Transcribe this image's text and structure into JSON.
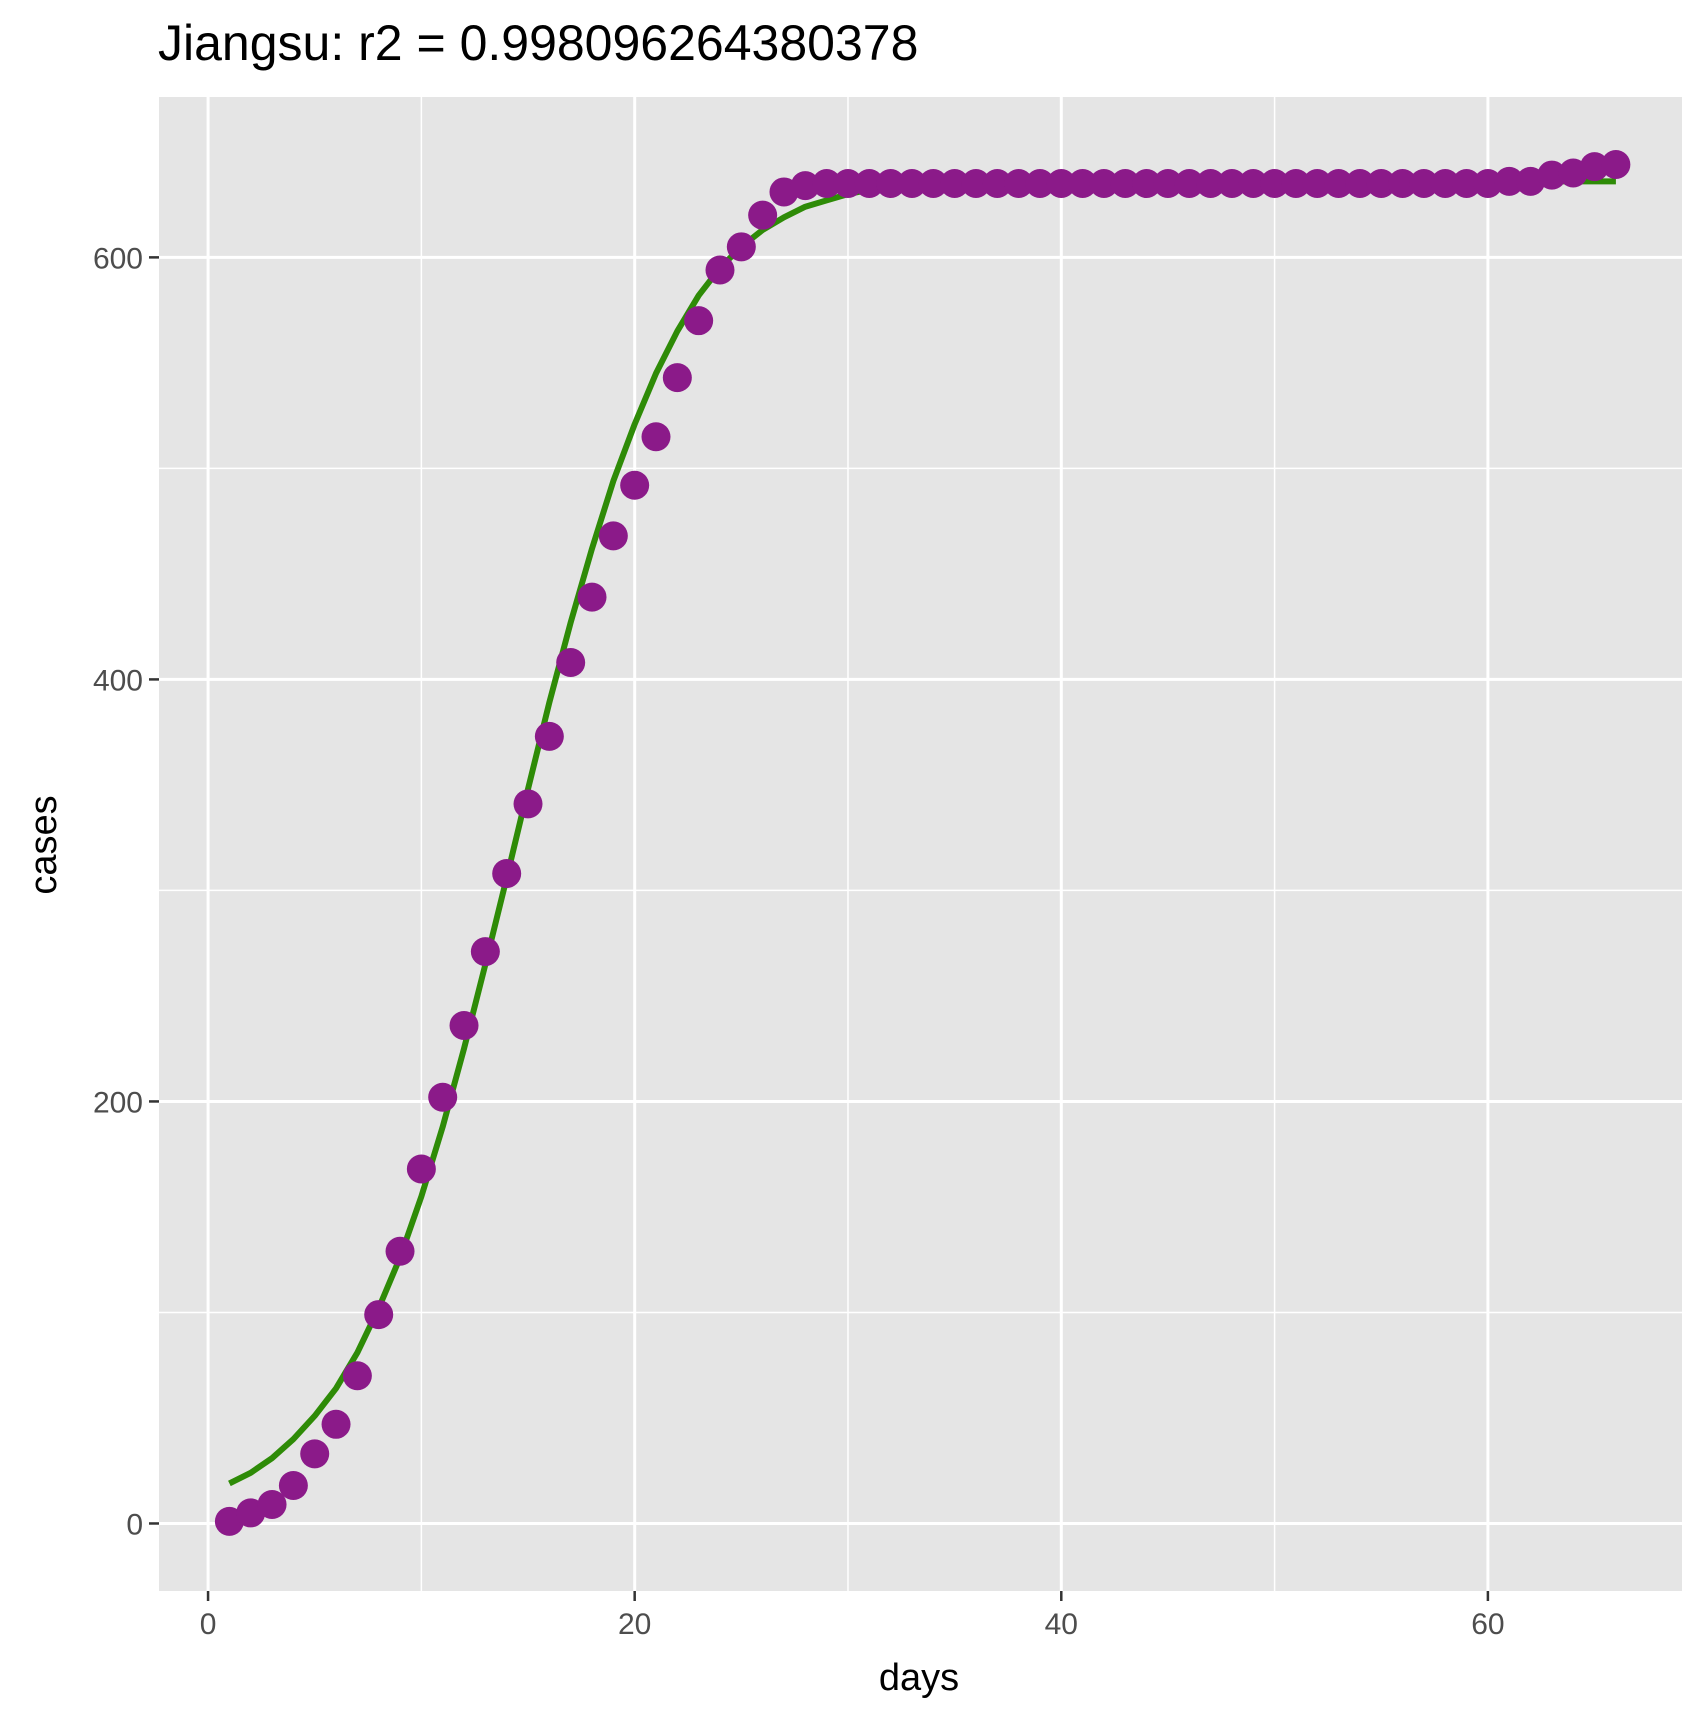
{
  "chart_data": {
    "type": "scatter",
    "title": "Jiangsu: r2 = 0.998096264380378",
    "xlabel": "days",
    "ylabel": "cases",
    "xlim": [
      -2.3,
      69.1
    ],
    "ylim": [
      -32,
      676
    ],
    "x_ticks": [
      0,
      20,
      40,
      60
    ],
    "x_tick_labels": [
      "0",
      "20",
      "40",
      "60"
    ],
    "x_minor_ticks": [
      10,
      30,
      50
    ],
    "y_ticks": [
      0,
      200,
      400,
      600
    ],
    "y_tick_labels": [
      "0",
      "200",
      "400",
      "600"
    ],
    "y_minor_ticks": [
      100,
      300,
      500
    ],
    "grid": true,
    "legend": "none",
    "background": "#e5e5e5",
    "series": [
      {
        "type": "points",
        "color": "#8b1a89",
        "x": [
          1,
          2,
          3,
          4,
          5,
          6,
          7,
          8,
          9,
          10,
          11,
          12,
          13,
          14,
          15,
          16,
          17,
          18,
          19,
          20,
          21,
          22,
          23,
          24,
          25,
          26,
          27,
          28,
          29,
          30,
          31,
          32,
          33,
          34,
          35,
          36,
          37,
          38,
          39,
          40,
          41,
          42,
          43,
          44,
          45,
          46,
          47,
          48,
          49,
          50,
          51,
          52,
          53,
          54,
          55,
          56,
          57,
          58,
          59,
          60,
          61,
          62,
          63,
          64,
          65,
          66
        ],
        "y": [
          1,
          5,
          9,
          18,
          33,
          47,
          70,
          99,
          129,
          168,
          202,
          236,
          271,
          308,
          341,
          373,
          408,
          439,
          468,
          492,
          515,
          543,
          570,
          594,
          605,
          620,
          631,
          634,
          635,
          635,
          635,
          635,
          635,
          635,
          635,
          635,
          635,
          635,
          635,
          635,
          635,
          635,
          635,
          635,
          635,
          635,
          635,
          635,
          635,
          635,
          635,
          635,
          635,
          635,
          635,
          635,
          635,
          635,
          635,
          635,
          636,
          636,
          639,
          640,
          643,
          644
        ]
      },
      {
        "type": "line",
        "color": "#2e8b07",
        "x": [
          1,
          2,
          3,
          4,
          5,
          6,
          7,
          8,
          9,
          10,
          11,
          12,
          13,
          14,
          15,
          16,
          17,
          18,
          19,
          20,
          21,
          22,
          23,
          24,
          25,
          26,
          27,
          28,
          29,
          30,
          31,
          32,
          33,
          34,
          35,
          36,
          37,
          38,
          39,
          40,
          42,
          44,
          46,
          48,
          50,
          52,
          54,
          56,
          58,
          60,
          62,
          64,
          66
        ],
        "y": [
          19,
          24,
          31,
          40,
          51,
          64,
          81,
          102,
          126,
          155,
          188,
          225,
          265,
          306,
          348,
          389,
          427,
          462,
          494,
          521,
          545,
          565,
          582,
          595,
          605,
          613,
          619,
          624,
          627,
          630,
          632,
          633,
          634,
          634.5,
          635,
          635.5,
          635.5,
          636,
          636,
          636,
          636,
          636,
          636,
          636,
          636,
          636,
          636,
          636,
          636,
          636,
          636,
          636,
          636
        ]
      }
    ]
  }
}
